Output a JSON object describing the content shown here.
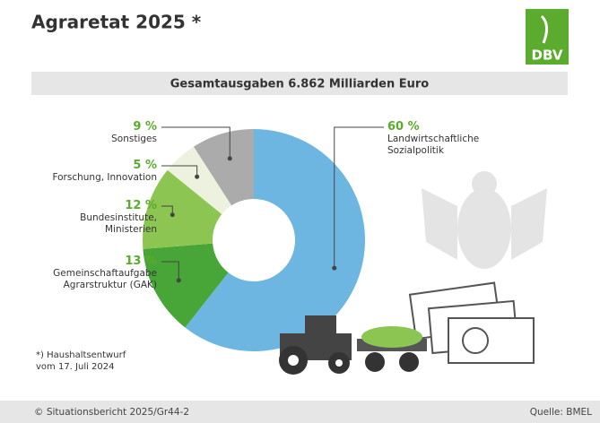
{
  "chart_data": {
    "type": "donut",
    "title": "Agraretat 2025 *",
    "subtitle": "Gesamtausgaben 6.862 Milliarden Euro",
    "categories": [
      "Landwirtschaftliche Sozialpolitik",
      "Gemeinschaftaufgabe Agrarstruktur (GAK)",
      "Bundesinstitute, Ministerien",
      "Forschung, Innovation",
      "Sonstiges"
    ],
    "values": [
      60,
      13,
      12,
      5,
      9
    ],
    "value_labels": [
      "60 %",
      "13 %",
      "12 %",
      "5 %",
      "9 %"
    ],
    "colors": [
      "#6db6e2",
      "#47a637",
      "#8dc553",
      "#edf2df",
      "#ababab"
    ],
    "footnote": "*) Haushaltsentwurf vom 17. Juli 2024",
    "logo": "DBV",
    "footer_left": "© Situationsbericht 2025/Gr44-2",
    "footer_right": "Quelle: BMEL"
  }
}
